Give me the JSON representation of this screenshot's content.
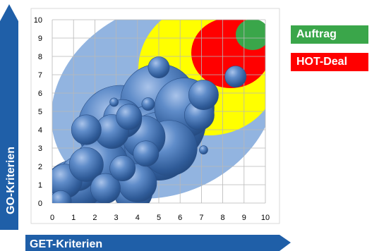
{
  "chart_data": {
    "type": "scatter",
    "subtype": "bubble",
    "xlabel": "GET-Kriterien",
    "ylabel": "GO-Kriterien",
    "xlim": [
      0,
      10
    ],
    "ylim": [
      0,
      10
    ],
    "x_ticks": [
      "0",
      "1",
      "2",
      "3",
      "4",
      "5",
      "6",
      "7",
      "8",
      "9",
      "10"
    ],
    "y_ticks": [
      "0",
      "1",
      "2",
      "3",
      "4",
      "5",
      "6",
      "7",
      "8",
      "9",
      "10"
    ],
    "grid": true,
    "colors": {
      "axis_arrow": "#1f5fa8",
      "zone_outer": "#92b4e0",
      "zone_yellow": "#ffff00",
      "zone_red": "#ff0000",
      "zone_green": "#3aa64a",
      "bubble": "#3f6fae",
      "grid": "#b8b8b8"
    },
    "zones": [
      {
        "name": "Auftrag",
        "color": "#3aa64a"
      },
      {
        "name": "HOT-Deal",
        "color": "#ff0000"
      }
    ],
    "series": [
      {
        "points": [
          {
            "x": 0.4,
            "y": 0.1,
            "size": 0.5
          },
          {
            "x": 1.1,
            "y": 0.5,
            "size": 1.6
          },
          {
            "x": 1.3,
            "y": 1.0,
            "size": 1.1
          },
          {
            "x": 1.2,
            "y": 1.6,
            "size": 0.8
          },
          {
            "x": 0.6,
            "y": 1.2,
            "size": 0.8
          },
          {
            "x": 1.6,
            "y": 2.1,
            "size": 0.8
          },
          {
            "x": 2.3,
            "y": 2.0,
            "size": 1.3
          },
          {
            "x": 2.5,
            "y": 0.8,
            "size": 0.7
          },
          {
            "x": 1.6,
            "y": 4.0,
            "size": 0.7
          },
          {
            "x": 2.8,
            "y": 3.9,
            "size": 0.8
          },
          {
            "x": 3.3,
            "y": 4.6,
            "size": 0.9
          },
          {
            "x": 3.2,
            "y": 4.1,
            "size": 2.0
          },
          {
            "x": 3.6,
            "y": 4.7,
            "size": 0.6
          },
          {
            "x": 2.9,
            "y": 5.5,
            "size": 0.2
          },
          {
            "x": 3.3,
            "y": 1.9,
            "size": 0.6
          },
          {
            "x": 3.8,
            "y": 0.6,
            "size": 0.9
          },
          {
            "x": 4.0,
            "y": 1.1,
            "size": 0.9
          },
          {
            "x": 4.3,
            "y": 3.6,
            "size": 1.0
          },
          {
            "x": 4.4,
            "y": 2.7,
            "size": 0.6
          },
          {
            "x": 4.7,
            "y": 3.5,
            "size": 1.6
          },
          {
            "x": 5.0,
            "y": 3.1,
            "size": 1.6
          },
          {
            "x": 5.3,
            "y": 4.4,
            "size": 1.9
          },
          {
            "x": 5.5,
            "y": 3.0,
            "size": 1.3
          },
          {
            "x": 5.0,
            "y": 5.5,
            "size": 1.8
          },
          {
            "x": 6.2,
            "y": 5.2,
            "size": 1.4
          },
          {
            "x": 6.9,
            "y": 4.8,
            "size": 0.7
          },
          {
            "x": 7.1,
            "y": 5.9,
            "size": 0.7
          },
          {
            "x": 5.0,
            "y": 7.4,
            "size": 0.5
          },
          {
            "x": 7.1,
            "y": 2.9,
            "size": 0.2
          },
          {
            "x": 4.5,
            "y": 5.4,
            "size": 0.3
          },
          {
            "x": 8.6,
            "y": 6.9,
            "size": 0.5
          }
        ]
      }
    ]
  }
}
